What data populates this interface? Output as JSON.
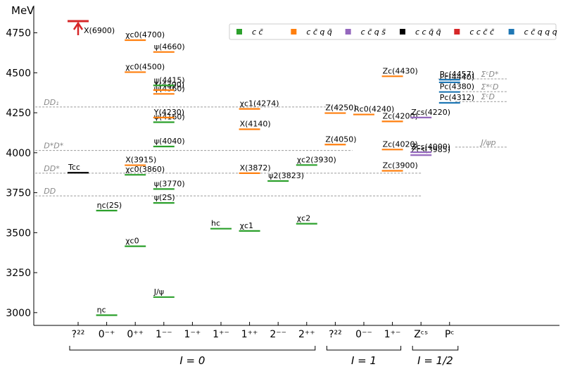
{
  "chart_data": {
    "type": "level-scheme",
    "ylabel": "MeV",
    "ylim": [
      2920,
      4920
    ],
    "y_ticks": [
      3000,
      3250,
      3500,
      3750,
      4000,
      4250,
      4500,
      4750
    ],
    "y_tick_labels": [
      "3000",
      "3250",
      "3500",
      "3750",
      "4000",
      "4250",
      "4500",
      "4750"
    ],
    "x_categories": [
      "?²²",
      "0⁻⁺",
      "0⁺⁺",
      "1⁻⁻",
      "1⁻⁺",
      "1⁺⁻",
      "1⁺⁺",
      "2⁻⁻",
      "2⁺⁺",
      "?²²",
      "0⁻⁻",
      "1⁺⁻",
      "Zᶜˢ",
      "Pᶜ"
    ],
    "groups": [
      {
        "label": "I = 0",
        "from": 0,
        "to": 8
      },
      {
        "label": "I = 1",
        "from": 9,
        "to": 11
      },
      {
        "label": "I = 1/2",
        "from": 12,
        "to": 13
      }
    ],
    "legend": {
      "position": "top-right",
      "entries": [
        {
          "key": "cc",
          "label": "c c̄",
          "color": "#2ca02c"
        },
        {
          "key": "ccqq",
          "label": "c c̄ q q̄",
          "color": "#ff7f0e"
        },
        {
          "key": "ccqs",
          "label": "c c̄ q s̄",
          "color": "#9467bd"
        },
        {
          "key": "ccqq2",
          "label": "c c q̄ q̄",
          "color": "#000000"
        },
        {
          "key": "cccc",
          "label": "c c c̄ c̄",
          "color": "#d62728"
        },
        {
          "key": "ccqqq",
          "label": "c c̄ q q q",
          "color": "#1f77b4"
        }
      ]
    },
    "thresholds": [
      {
        "label": "DD₁",
        "mass": 4286,
        "from_cat": -1.5,
        "to_cat": 9.6,
        "label_cat": -1.2
      },
      {
        "label": "D*D*",
        "mass": 4014,
        "from_cat": -1.5,
        "to_cat": 9.6,
        "label_cat": -1.2
      },
      {
        "label": "DD*",
        "mass": 3872,
        "from_cat": -1.5,
        "to_cat": 12.0,
        "label_cat": -1.2
      },
      {
        "label": "DD",
        "mass": 3730,
        "from_cat": -1.5,
        "to_cat": 12.0,
        "label_cat": -1.2
      },
      {
        "label": "ΣᶜD*",
        "mass": 4462,
        "from_cat": 12.6,
        "to_cat": 15.0,
        "label_cat": 14.1
      },
      {
        "label": "Σ*ᶜD",
        "mass": 4382,
        "from_cat": 13.2,
        "to_cat": 15.0,
        "label_cat": 14.1
      },
      {
        "label": "ΣᶜD",
        "mass": 4320,
        "from_cat": 13.2,
        "to_cat": 15.0,
        "label_cat": 14.1
      },
      {
        "label": "J/ψp",
        "mass": 4035,
        "from_cat": 13.2,
        "to_cat": 15.0,
        "label_cat": 14.1
      }
    ],
    "levels": [
      {
        "cat": 0,
        "mass": 6900,
        "type": "cccc",
        "label": "X(6900)",
        "offscale": true
      },
      {
        "cat": 0,
        "mass": 3875,
        "type": "ccqq2",
        "label": "Tcc"
      },
      {
        "cat": 1,
        "mass": 2984,
        "type": "cc",
        "label": "ηc"
      },
      {
        "cat": 1,
        "mass": 3638,
        "type": "cc",
        "label": "ηc(2S)"
      },
      {
        "cat": 2,
        "mass": 3415,
        "type": "cc",
        "label": "χc0"
      },
      {
        "cat": 2,
        "mass": 3862,
        "type": "cc",
        "label": "χc0(3860)"
      },
      {
        "cat": 2,
        "mass": 3922,
        "type": "ccqq",
        "label": "X(3915)"
      },
      {
        "cat": 2,
        "mass": 4504,
        "type": "ccqq",
        "label": "χc0(4500)"
      },
      {
        "cat": 2,
        "mass": 4704,
        "type": "ccqq",
        "label": "χc0(4700)"
      },
      {
        "cat": 3,
        "mass": 3097,
        "type": "cc",
        "label": "J/ψ"
      },
      {
        "cat": 3,
        "mass": 3686,
        "type": "cc",
        "label": "ψ(2S)"
      },
      {
        "cat": 3,
        "mass": 3773,
        "type": "cc",
        "label": "ψ(3770)"
      },
      {
        "cat": 3,
        "mass": 4039,
        "type": "cc",
        "label": "ψ(4040)"
      },
      {
        "cat": 3,
        "mass": 4191,
        "type": "cc",
        "label": "ψ(4160)"
      },
      {
        "cat": 3,
        "mass": 4220,
        "type": "ccqq",
        "label": "Y(4230)"
      },
      {
        "cat": 3,
        "mass": 4368,
        "type": "ccqq",
        "label": "ψ(4360)"
      },
      {
        "cat": 3,
        "mass": 4392,
        "type": "ccqq",
        "label": "Y(4390)"
      },
      {
        "cat": 3,
        "mass": 4421,
        "type": "cc",
        "label": "ψ(4415)"
      },
      {
        "cat": 3,
        "mass": 4630,
        "type": "ccqq",
        "label": "ψ(4660)"
      },
      {
        "cat": 5,
        "mass": 3525,
        "type": "cc",
        "label": "hc"
      },
      {
        "cat": 6,
        "mass": 3511,
        "type": "cc",
        "label": "χc1"
      },
      {
        "cat": 6,
        "mass": 3872,
        "type": "ccqq",
        "label": "X(3872)"
      },
      {
        "cat": 6,
        "mass": 4147,
        "type": "ccqq",
        "label": "X(4140)"
      },
      {
        "cat": 6,
        "mass": 4274,
        "type": "ccqq",
        "label": "χc1(4274)"
      },
      {
        "cat": 7,
        "mass": 3823,
        "type": "cc",
        "label": "ψ2(3823)"
      },
      {
        "cat": 8,
        "mass": 3556,
        "type": "cc",
        "label": "χc2"
      },
      {
        "cat": 8,
        "mass": 3923,
        "type": "cc",
        "label": "χc2(3930)"
      },
      {
        "cat": 9,
        "mass": 4051,
        "type": "ccqq",
        "label": "Z(4050)"
      },
      {
        "cat": 9,
        "mass": 4248,
        "type": "ccqq",
        "label": "Z(4250)"
      },
      {
        "cat": 10,
        "mass": 4239,
        "type": "ccqq",
        "label": "Rc0(4240)"
      },
      {
        "cat": 11,
        "mass": 3887,
        "type": "ccqq",
        "label": "Zc(3900)"
      },
      {
        "cat": 11,
        "mass": 4020,
        "type": "ccqq",
        "label": "Zc(4020)"
      },
      {
        "cat": 11,
        "mass": 4196,
        "type": "ccqq",
        "label": "Zc(4200)"
      },
      {
        "cat": 11,
        "mass": 4478,
        "type": "ccqq",
        "label": "Zc(4430)"
      },
      {
        "cat": 12,
        "mass": 3985,
        "type": "ccqs",
        "label": "Zcs(3985)"
      },
      {
        "cat": 12,
        "mass": 4003,
        "type": "ccqs",
        "label": "Zcs(4000)"
      },
      {
        "cat": 12,
        "mass": 4220,
        "type": "ccqs",
        "label": "Zcs(4220)"
      },
      {
        "cat": 13,
        "mass": 4312,
        "type": "ccqqq",
        "label": "Pc(4312)"
      },
      {
        "cat": 13,
        "mass": 4380,
        "type": "ccqqq",
        "label": "Pc(4380)"
      },
      {
        "cat": 13,
        "mass": 4440,
        "type": "ccqqq",
        "label": "Pc(4440)"
      },
      {
        "cat": 13,
        "mass": 4457,
        "type": "ccqqq",
        "label": "Pc(4457)"
      }
    ]
  }
}
